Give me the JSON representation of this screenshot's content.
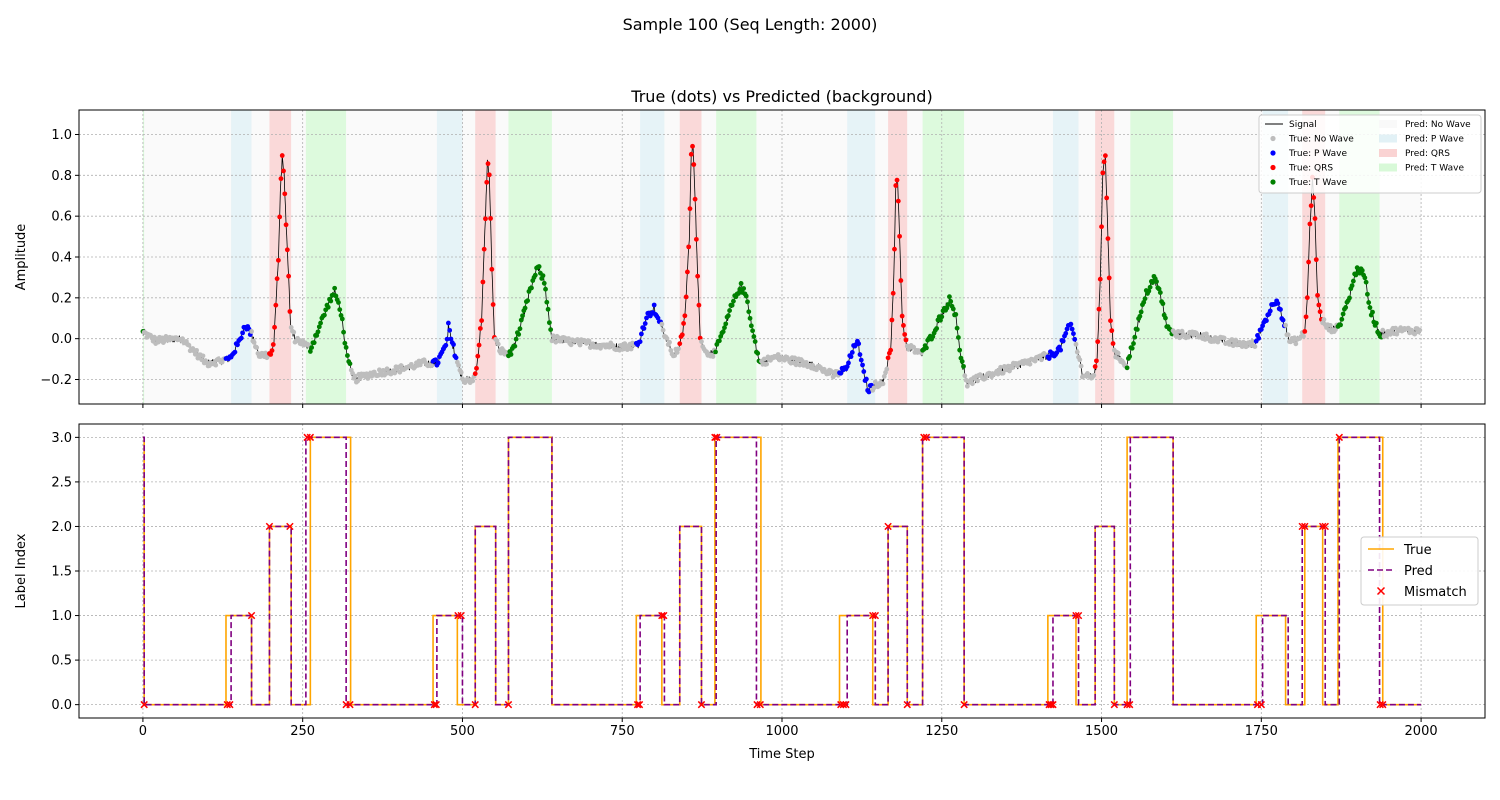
{
  "figure": {
    "suptitle": "Sample 100 (Seq Length: 2000)"
  },
  "colors": {
    "signal": "#000000",
    "no_wave": "#bdbdbd",
    "p_wave": "#0000ff",
    "qrs": "#ff0000",
    "t_wave": "#008000",
    "bg_no_wave": "#f5f5f5",
    "bg_p_wave": "#add8e6",
    "bg_qrs": "#f08080",
    "bg_t_wave": "#90ee90",
    "true_line": "#ffa500",
    "pred_line": "#800080",
    "mismatch": "#ff0000"
  },
  "chart_data": [
    {
      "type": "line",
      "title": "True (dots) vs Predicted (background)",
      "xlabel": "",
      "ylabel": "Amplitude",
      "xlim": [
        -100,
        2100
      ],
      "ylim": [
        -0.32,
        1.12
      ],
      "xticks": [
        0,
        250,
        500,
        750,
        1000,
        1250,
        1500,
        1750,
        2000
      ],
      "xtick_labels": [
        "",
        "",
        "",
        "",
        "",
        "",
        "",
        "",
        ""
      ],
      "yticks": [
        -0.2,
        0.0,
        0.2,
        0.4,
        0.6,
        0.8,
        1.0
      ],
      "ytick_labels": [
        "−0.2",
        "0.0",
        "0.2",
        "0.4",
        "0.6",
        "0.8",
        "1.0"
      ],
      "grid": true,
      "legend": {
        "placement": "top-right",
        "entries": [
          "Signal",
          "True: No Wave",
          "True: P Wave",
          "True: QRS",
          "True: T Wave",
          "Pred: No Wave",
          "Pred: P Wave",
          "Pred: QRS",
          "Pred: T Wave"
        ]
      },
      "signal_anchors": [
        [
          0,
          0.03
        ],
        [
          20,
          -0.01
        ],
        [
          60,
          0.0
        ],
        [
          100,
          -0.12
        ],
        [
          135,
          -0.1
        ],
        [
          150,
          -0.02
        ],
        [
          160,
          0.07
        ],
        [
          170,
          0.02
        ],
        [
          182,
          -0.08
        ],
        [
          200,
          -0.08
        ],
        [
          205,
          -0.02
        ],
        [
          212,
          0.4
        ],
        [
          215,
          0.7
        ],
        [
          218,
          0.9
        ],
        [
          221,
          0.8
        ],
        [
          224,
          0.55
        ],
        [
          228,
          0.3
        ],
        [
          231,
          0.06
        ],
        [
          238,
          0.0
        ],
        [
          250,
          -0.02
        ],
        [
          262,
          -0.05
        ],
        [
          275,
          0.05
        ],
        [
          290,
          0.17
        ],
        [
          300,
          0.23
        ],
        [
          310,
          0.13
        ],
        [
          320,
          -0.1
        ],
        [
          330,
          -0.2
        ],
        [
          360,
          -0.17
        ],
        [
          400,
          -0.15
        ],
        [
          440,
          -0.12
        ],
        [
          460,
          -0.12
        ],
        [
          475,
          -0.03
        ],
        [
          478,
          0.06
        ],
        [
          482,
          0.0
        ],
        [
          500,
          -0.2
        ],
        [
          518,
          -0.2
        ],
        [
          522,
          -0.15
        ],
        [
          530,
          0.1
        ],
        [
          536,
          0.6
        ],
        [
          539,
          0.87
        ],
        [
          542,
          0.8
        ],
        [
          546,
          0.35
        ],
        [
          550,
          0.0
        ],
        [
          560,
          -0.06
        ],
        [
          575,
          -0.08
        ],
        [
          590,
          0.05
        ],
        [
          607,
          0.25
        ],
        [
          618,
          0.35
        ],
        [
          628,
          0.28
        ],
        [
          640,
          0.0
        ],
        [
          680,
          -0.02
        ],
        [
          750,
          -0.04
        ],
        [
          775,
          -0.03
        ],
        [
          787,
          0.1
        ],
        [
          800,
          0.15
        ],
        [
          810,
          0.07
        ],
        [
          830,
          -0.08
        ],
        [
          840,
          -0.04
        ],
        [
          848,
          0.1
        ],
        [
          855,
          0.5
        ],
        [
          858,
          0.9
        ],
        [
          861,
          0.94
        ],
        [
          864,
          0.7
        ],
        [
          868,
          0.3
        ],
        [
          872,
          0.02
        ],
        [
          880,
          -0.07
        ],
        [
          895,
          -0.07
        ],
        [
          910,
          0.05
        ],
        [
          920,
          0.15
        ],
        [
          935,
          0.26
        ],
        [
          945,
          0.2
        ],
        [
          955,
          0.02
        ],
        [
          965,
          -0.12
        ],
        [
          990,
          -0.09
        ],
        [
          1050,
          -0.13
        ],
        [
          1080,
          -0.18
        ],
        [
          1100,
          -0.15
        ],
        [
          1112,
          -0.05
        ],
        [
          1118,
          0.0
        ],
        [
          1124,
          -0.12
        ],
        [
          1135,
          -0.25
        ],
        [
          1160,
          -0.2
        ],
        [
          1170,
          -0.05
        ],
        [
          1175,
          0.3
        ],
        [
          1178,
          0.75
        ],
        [
          1181,
          0.78
        ],
        [
          1184,
          0.5
        ],
        [
          1188,
          0.1
        ],
        [
          1195,
          -0.04
        ],
        [
          1220,
          -0.07
        ],
        [
          1235,
          0.02
        ],
        [
          1250,
          0.12
        ],
        [
          1262,
          0.19
        ],
        [
          1272,
          0.12
        ],
        [
          1280,
          -0.1
        ],
        [
          1290,
          -0.22
        ],
        [
          1320,
          -0.18
        ],
        [
          1380,
          -0.12
        ],
        [
          1420,
          -0.08
        ],
        [
          1435,
          -0.05
        ],
        [
          1445,
          0.03
        ],
        [
          1452,
          0.07
        ],
        [
          1460,
          -0.03
        ],
        [
          1470,
          -0.17
        ],
        [
          1488,
          -0.19
        ],
        [
          1493,
          -0.1
        ],
        [
          1498,
          0.3
        ],
        [
          1502,
          0.82
        ],
        [
          1506,
          0.88
        ],
        [
          1509,
          0.6
        ],
        [
          1514,
          0.1
        ],
        [
          1520,
          -0.07
        ],
        [
          1540,
          -0.13
        ],
        [
          1555,
          0.05
        ],
        [
          1570,
          0.22
        ],
        [
          1582,
          0.3
        ],
        [
          1592,
          0.22
        ],
        [
          1603,
          0.05
        ],
        [
          1615,
          0.02
        ],
        [
          1650,
          0.02
        ],
        [
          1700,
          -0.02
        ],
        [
          1740,
          -0.03
        ],
        [
          1750,
          0.05
        ],
        [
          1765,
          0.15
        ],
        [
          1775,
          0.2
        ],
        [
          1785,
          0.08
        ],
        [
          1795,
          -0.02
        ],
        [
          1810,
          0.0
        ],
        [
          1818,
          0.03
        ],
        [
          1822,
          0.2
        ],
        [
          1826,
          0.55
        ],
        [
          1830,
          0.78
        ],
        [
          1834,
          0.6
        ],
        [
          1838,
          0.2
        ],
        [
          1843,
          0.1
        ],
        [
          1855,
          0.05
        ],
        [
          1870,
          0.05
        ],
        [
          1885,
          0.18
        ],
        [
          1900,
          0.35
        ],
        [
          1912,
          0.3
        ],
        [
          1920,
          0.15
        ],
        [
          1935,
          0.02
        ],
        [
          1960,
          0.04
        ],
        [
          2000,
          0.04
        ]
      ],
      "noise_amplitude": 0.018,
      "true_segments": [
        {
          "start": 0,
          "end": 2,
          "label": 3
        },
        {
          "start": 2,
          "end": 130,
          "label": 0
        },
        {
          "start": 130,
          "end": 170,
          "label": 1
        },
        {
          "start": 170,
          "end": 198,
          "label": 0
        },
        {
          "start": 198,
          "end": 232,
          "label": 2
        },
        {
          "start": 232,
          "end": 262,
          "label": 0
        },
        {
          "start": 262,
          "end": 325,
          "label": 3
        },
        {
          "start": 325,
          "end": 454,
          "label": 0
        },
        {
          "start": 454,
          "end": 492,
          "label": 1
        },
        {
          "start": 492,
          "end": 520,
          "label": 0
        },
        {
          "start": 520,
          "end": 552,
          "label": 2
        },
        {
          "start": 552,
          "end": 572,
          "label": 0
        },
        {
          "start": 572,
          "end": 640,
          "label": 3
        },
        {
          "start": 640,
          "end": 772,
          "label": 0
        },
        {
          "start": 772,
          "end": 812,
          "label": 1
        },
        {
          "start": 812,
          "end": 840,
          "label": 0
        },
        {
          "start": 840,
          "end": 874,
          "label": 2
        },
        {
          "start": 874,
          "end": 895,
          "label": 0
        },
        {
          "start": 895,
          "end": 967,
          "label": 3
        },
        {
          "start": 967,
          "end": 1090,
          "label": 0
        },
        {
          "start": 1090,
          "end": 1142,
          "label": 1
        },
        {
          "start": 1142,
          "end": 1166,
          "label": 0
        },
        {
          "start": 1166,
          "end": 1196,
          "label": 2
        },
        {
          "start": 1196,
          "end": 1220,
          "label": 0
        },
        {
          "start": 1220,
          "end": 1285,
          "label": 3
        },
        {
          "start": 1285,
          "end": 1416,
          "label": 0
        },
        {
          "start": 1416,
          "end": 1460,
          "label": 1
        },
        {
          "start": 1460,
          "end": 1490,
          "label": 0
        },
        {
          "start": 1490,
          "end": 1520,
          "label": 2
        },
        {
          "start": 1520,
          "end": 1540,
          "label": 0
        },
        {
          "start": 1540,
          "end": 1612,
          "label": 3
        },
        {
          "start": 1612,
          "end": 1742,
          "label": 0
        },
        {
          "start": 1742,
          "end": 1788,
          "label": 1
        },
        {
          "start": 1788,
          "end": 1818,
          "label": 0
        },
        {
          "start": 1818,
          "end": 1846,
          "label": 2
        },
        {
          "start": 1846,
          "end": 1870,
          "label": 0
        },
        {
          "start": 1870,
          "end": 1940,
          "label": 3
        },
        {
          "start": 1940,
          "end": 2000,
          "label": 0
        }
      ],
      "pred_segments": [
        {
          "start": 0,
          "end": 2,
          "label": 3
        },
        {
          "start": 2,
          "end": 138,
          "label": 0
        },
        {
          "start": 138,
          "end": 170,
          "label": 1
        },
        {
          "start": 170,
          "end": 198,
          "label": 0
        },
        {
          "start": 198,
          "end": 232,
          "label": 2
        },
        {
          "start": 232,
          "end": 255,
          "label": 0
        },
        {
          "start": 255,
          "end": 318,
          "label": 3
        },
        {
          "start": 318,
          "end": 460,
          "label": 0
        },
        {
          "start": 460,
          "end": 500,
          "label": 1
        },
        {
          "start": 500,
          "end": 520,
          "label": 0
        },
        {
          "start": 520,
          "end": 552,
          "label": 2
        },
        {
          "start": 552,
          "end": 572,
          "label": 0
        },
        {
          "start": 572,
          "end": 640,
          "label": 3
        },
        {
          "start": 640,
          "end": 778,
          "label": 0
        },
        {
          "start": 778,
          "end": 816,
          "label": 1
        },
        {
          "start": 816,
          "end": 840,
          "label": 0
        },
        {
          "start": 840,
          "end": 874,
          "label": 2
        },
        {
          "start": 874,
          "end": 897,
          "label": 0
        },
        {
          "start": 897,
          "end": 960,
          "label": 3
        },
        {
          "start": 960,
          "end": 1102,
          "label": 0
        },
        {
          "start": 1102,
          "end": 1146,
          "label": 1
        },
        {
          "start": 1146,
          "end": 1166,
          "label": 0
        },
        {
          "start": 1166,
          "end": 1196,
          "label": 2
        },
        {
          "start": 1196,
          "end": 1220,
          "label": 0
        },
        {
          "start": 1220,
          "end": 1285,
          "label": 3
        },
        {
          "start": 1285,
          "end": 1424,
          "label": 0
        },
        {
          "start": 1424,
          "end": 1464,
          "label": 1
        },
        {
          "start": 1464,
          "end": 1490,
          "label": 0
        },
        {
          "start": 1490,
          "end": 1520,
          "label": 2
        },
        {
          "start": 1520,
          "end": 1545,
          "label": 0
        },
        {
          "start": 1545,
          "end": 1612,
          "label": 3
        },
        {
          "start": 1612,
          "end": 1752,
          "label": 0
        },
        {
          "start": 1752,
          "end": 1792,
          "label": 1
        },
        {
          "start": 1792,
          "end": 1814,
          "label": 0
        },
        {
          "start": 1814,
          "end": 1850,
          "label": 2
        },
        {
          "start": 1850,
          "end": 1872,
          "label": 0
        },
        {
          "start": 1872,
          "end": 1935,
          "label": 3
        },
        {
          "start": 1935,
          "end": 2000,
          "label": 0
        }
      ]
    },
    {
      "type": "line",
      "title": "",
      "xlabel": "Time Step",
      "ylabel": "Label Index",
      "xlim": [
        -100,
        2100
      ],
      "ylim": [
        -0.15,
        3.15
      ],
      "xticks": [
        0,
        250,
        500,
        750,
        1000,
        1250,
        1500,
        1750,
        2000
      ],
      "xtick_labels": [
        "0",
        "250",
        "500",
        "750",
        "1000",
        "1250",
        "1500",
        "1750",
        "2000"
      ],
      "yticks": [
        0.0,
        0.5,
        1.0,
        1.5,
        2.0,
        2.5,
        3.0
      ],
      "ytick_labels": [
        "0.0",
        "0.5",
        "1.0",
        "1.5",
        "2.0",
        "2.5",
        "3.0"
      ],
      "grid": true,
      "legend": {
        "placement": "center-right",
        "entries": [
          "True",
          "Pred",
          "Mismatch"
        ]
      },
      "mismatches": [
        {
          "x": 2,
          "y": 0
        },
        {
          "x": 132,
          "y": 0
        },
        {
          "x": 136,
          "y": 0
        },
        {
          "x": 170,
          "y": 1
        },
        {
          "x": 198,
          "y": 2
        },
        {
          "x": 230,
          "y": 2
        },
        {
          "x": 257,
          "y": 3
        },
        {
          "x": 262,
          "y": 3
        },
        {
          "x": 318,
          "y": 0
        },
        {
          "x": 324,
          "y": 0
        },
        {
          "x": 456,
          "y": 0
        },
        {
          "x": 459,
          "y": 0
        },
        {
          "x": 493,
          "y": 1
        },
        {
          "x": 498,
          "y": 1
        },
        {
          "x": 520,
          "y": 0
        },
        {
          "x": 572,
          "y": 0
        },
        {
          "x": 774,
          "y": 0
        },
        {
          "x": 777,
          "y": 0
        },
        {
          "x": 812,
          "y": 1
        },
        {
          "x": 815,
          "y": 1
        },
        {
          "x": 874,
          "y": 0
        },
        {
          "x": 895,
          "y": 3
        },
        {
          "x": 898,
          "y": 3
        },
        {
          "x": 961,
          "y": 0
        },
        {
          "x": 966,
          "y": 0
        },
        {
          "x": 1092,
          "y": 0
        },
        {
          "x": 1096,
          "y": 0
        },
        {
          "x": 1100,
          "y": 0
        },
        {
          "x": 1142,
          "y": 1
        },
        {
          "x": 1146,
          "y": 1
        },
        {
          "x": 1166,
          "y": 2
        },
        {
          "x": 1196,
          "y": 0
        },
        {
          "x": 1222,
          "y": 3
        },
        {
          "x": 1226,
          "y": 3
        },
        {
          "x": 1285,
          "y": 0
        },
        {
          "x": 1418,
          "y": 0
        },
        {
          "x": 1421,
          "y": 0
        },
        {
          "x": 1424,
          "y": 0
        },
        {
          "x": 1460,
          "y": 1
        },
        {
          "x": 1464,
          "y": 1
        },
        {
          "x": 1520,
          "y": 0
        },
        {
          "x": 1540,
          "y": 0
        },
        {
          "x": 1544,
          "y": 0
        },
        {
          "x": 1744,
          "y": 0
        },
        {
          "x": 1750,
          "y": 0
        },
        {
          "x": 1814,
          "y": 2
        },
        {
          "x": 1818,
          "y": 2
        },
        {
          "x": 1846,
          "y": 2
        },
        {
          "x": 1850,
          "y": 2
        },
        {
          "x": 1872,
          "y": 3
        },
        {
          "x": 1936,
          "y": 0
        },
        {
          "x": 1940,
          "y": 0
        }
      ]
    }
  ]
}
